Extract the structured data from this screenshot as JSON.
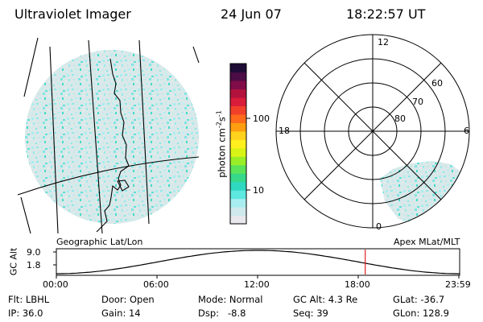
{
  "header": {
    "instrument": "Ultraviolet Imager",
    "date": "24 Jun 07",
    "time": "18:22:57 UT"
  },
  "geo_map": {
    "label": "Geographic Lat/Lon"
  },
  "polar_plot": {
    "label": "Apex MLat/MLT",
    "mlt_labels": [
      "12",
      "18",
      "6",
      "0"
    ],
    "lat_labels": [
      "60",
      "70",
      "80"
    ]
  },
  "colorbar": {
    "unit_main": "photon cm",
    "unit_exp1": "-2",
    "unit_s": "s",
    "unit_exp2": "-1",
    "ticks": [
      "100",
      "10"
    ],
    "colors": [
      "#e8e8ec",
      "#cfe9ec",
      "#a8eef0",
      "#5de8e0",
      "#2fd8c0",
      "#36d88a",
      "#5be35a",
      "#9aee28",
      "#d8f416",
      "#fff01e",
      "#ffd21e",
      "#ff9e10",
      "#ff6a1c",
      "#f0402a",
      "#d81c3a",
      "#b2123c",
      "#800c48",
      "#4c0c46",
      "#1e0c36"
    ]
  },
  "altitude_plot": {
    "ylabel": "GC Alt",
    "y_ticks": [
      "9.0",
      "1.8"
    ],
    "x_ticks": [
      "00:00",
      "06:00",
      "12:00",
      "18:00",
      "23:59"
    ],
    "current_time_hours": 18.38
  },
  "status": {
    "flt": "Flt: LBHL",
    "ip": "IP: 36.0",
    "door": "Door: Open",
    "gain": "Gain: 14",
    "mode": "Mode: Normal",
    "dsp": "Dsp:   -8.8",
    "gcalt": "GC Alt: 4.3 Re",
    "seq": "Seq: 39",
    "glat": "GLat: -36.7",
    "glon": "GLon: 128.9"
  }
}
